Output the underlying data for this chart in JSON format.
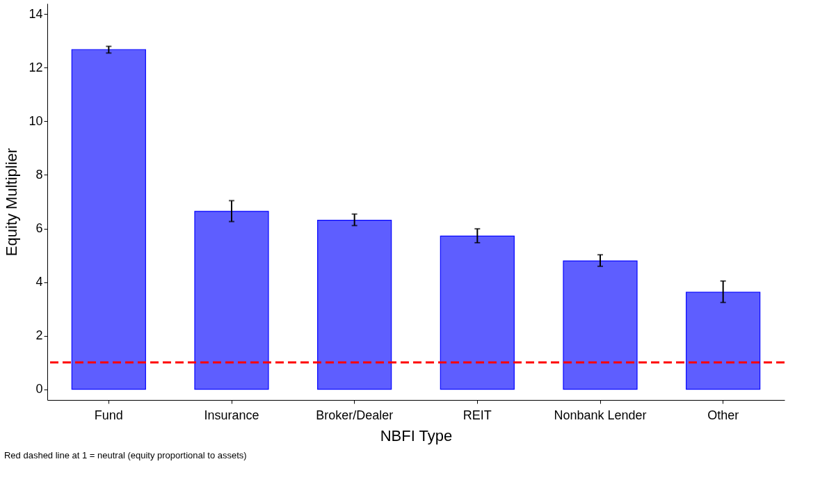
{
  "chart_data": {
    "type": "bar",
    "xlabel": "NBFI Type",
    "ylabel": "Equity Multiplier",
    "categories": [
      "Fund",
      "Insurance",
      "Broker/Dealer",
      "REIT",
      "Nonbank Lender",
      "Other"
    ],
    "values": [
      12.68,
      6.64,
      6.31,
      5.72,
      4.79,
      3.62
    ],
    "errors": [
      [
        12.55,
        12.8
      ],
      [
        6.26,
        7.04
      ],
      [
        6.11,
        6.54
      ],
      [
        5.47,
        5.99
      ],
      [
        4.59,
        5.02
      ],
      [
        3.24,
        4.04
      ]
    ],
    "color": "#5b5bff",
    "ylim": [
      -0.4,
      14.4
    ],
    "yticks": [
      0,
      2,
      4,
      6,
      8,
      10,
      12,
      14
    ],
    "grid": false,
    "ref_lines": [
      {
        "axis": "y",
        "value": 1,
        "color": "#ff0000",
        "line_style": "dashed"
      }
    ],
    "annotations": [
      "Red dashed line at 1 = neutral (equity proportional to assets)"
    ]
  }
}
